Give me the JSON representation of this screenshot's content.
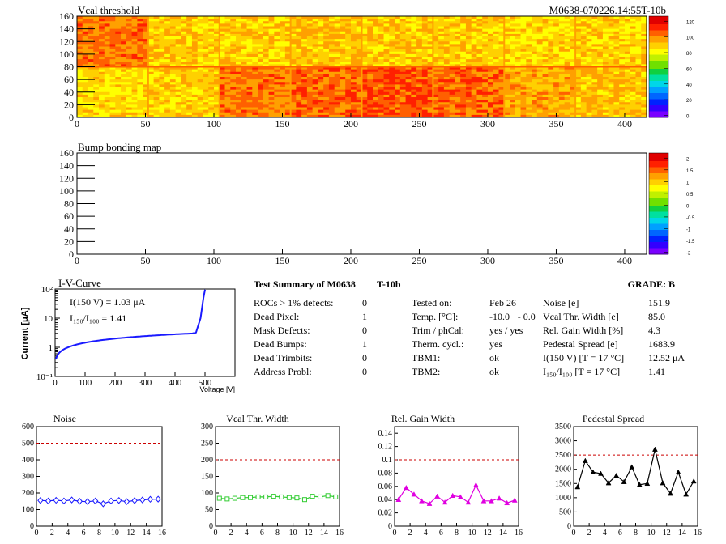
{
  "vcal_map": {
    "title": "Vcal threshold",
    "module_label": "M0638-070226.14:55T-10b",
    "x_ticks": [
      0,
      50,
      100,
      150,
      200,
      250,
      300,
      350,
      400
    ],
    "y_ticks": [
      0,
      20,
      40,
      60,
      80,
      100,
      120,
      140,
      160
    ],
    "scale_ticks": [
      "0",
      "20",
      "40",
      "60",
      "80",
      "100",
      "120"
    ]
  },
  "bump_map": {
    "title": "Bump bonding map",
    "x_ticks": [
      0,
      50,
      100,
      150,
      200,
      250,
      300,
      350,
      400
    ],
    "y_ticks": [
      0,
      20,
      40,
      60,
      80,
      100,
      120,
      140,
      160
    ],
    "scale_ticks": [
      "-2",
      "-1.5",
      "-1",
      "-0.5",
      "0",
      "0.5",
      "1",
      "1.5",
      "2"
    ]
  },
  "iv_curve": {
    "title": "I-V-Curve",
    "ylabel": "Current [μA]",
    "xlabel": "Voltage [V]",
    "x_ticks": [
      0,
      100,
      200,
      300,
      400,
      500
    ],
    "y_labels": [
      "10⁻¹",
      "1",
      "10",
      "10²"
    ],
    "annotation_1": "I(150 V) = 1.03 μA",
    "annotation_2": "I₁₅₀/I₁₀₀ = 1.41"
  },
  "summary": {
    "title": "Test Summary of M0638",
    "subtitle": "T-10b",
    "grade": "GRADE:  B",
    "col1": [
      {
        "label": "ROCs > 1% defects:",
        "value": "0"
      },
      {
        "label": "Dead Pixel:",
        "value": "1"
      },
      {
        "label": "Mask Defects:",
        "value": "0"
      },
      {
        "label": "Dead Bumps:",
        "value": "1"
      },
      {
        "label": "Dead Trimbits:",
        "value": "0"
      },
      {
        "label": "Address Probl:",
        "value": "0"
      }
    ],
    "col2": [
      {
        "label": "Tested on:",
        "value": "Feb 26"
      },
      {
        "label": "Temp. [°C]:",
        "value": "-10.0 +- 0.0"
      },
      {
        "label": "Trim / phCal:",
        "value": "yes / yes"
      },
      {
        "label": "Therm. cycl.:",
        "value": "yes"
      },
      {
        "label": "TBM1:",
        "value": "ok"
      },
      {
        "label": "TBM2:",
        "value": "ok"
      }
    ],
    "col3": [
      {
        "label": "Noise [e]",
        "value": "151.9"
      },
      {
        "label": "Vcal Thr. Width [e]",
        "value": "85.0"
      },
      {
        "label": "Rel. Gain Width [%]",
        "value": "4.3"
      },
      {
        "label": "Pedestal Spread [e]",
        "value": "1683.9"
      },
      {
        "label": "I(150 V) [T = 17 °C]",
        "value": "12.52 μA"
      },
      {
        "label": "I₁₅₀/I₁₀₀  [T = 17 °C]",
        "value": "1.41"
      }
    ]
  },
  "chart_data": [
    {
      "type": "line",
      "title": "Noise",
      "x": [
        0,
        1,
        2,
        3,
        4,
        5,
        6,
        7,
        8,
        9,
        10,
        11,
        12,
        13,
        14,
        15
      ],
      "values": [
        155,
        152,
        156,
        152,
        158,
        150,
        148,
        152,
        135,
        152,
        155,
        148,
        154,
        158,
        162,
        163
      ],
      "threshold": 500,
      "ylim": [
        0,
        600
      ],
      "xlim": [
        0,
        16
      ],
      "y_ticks": [
        0,
        100,
        200,
        300,
        400,
        500,
        600
      ],
      "x_ticks": [
        0,
        2,
        4,
        6,
        8,
        10,
        12,
        14,
        16
      ],
      "color": "#1a1aff",
      "marker": "diamond"
    },
    {
      "type": "line",
      "title": "Vcal Thr. Width",
      "x": [
        0,
        1,
        2,
        3,
        4,
        5,
        6,
        7,
        8,
        9,
        10,
        11,
        12,
        13,
        14,
        15
      ],
      "values": [
        84,
        82,
        84,
        86,
        86,
        88,
        88,
        90,
        88,
        86,
        85,
        80,
        90,
        88,
        92,
        88
      ],
      "threshold": 200,
      "ylim": [
        0,
        300
      ],
      "xlim": [
        0,
        16
      ],
      "y_ticks": [
        0,
        50,
        100,
        150,
        200,
        250,
        300
      ],
      "x_ticks": [
        0,
        2,
        4,
        6,
        8,
        10,
        12,
        14,
        16
      ],
      "color": "#33cc33",
      "marker": "square"
    },
    {
      "type": "line",
      "title": "Rel. Gain Width",
      "x": [
        0,
        1,
        2,
        3,
        4,
        5,
        6,
        7,
        8,
        9,
        10,
        11,
        12,
        13,
        14,
        15
      ],
      "values": [
        0.04,
        0.058,
        0.048,
        0.038,
        0.034,
        0.045,
        0.036,
        0.046,
        0.044,
        0.036,
        0.062,
        0.038,
        0.038,
        0.042,
        0.035,
        0.039
      ],
      "threshold": 0.1,
      "ylim": [
        0,
        0.15
      ],
      "xlim": [
        0,
        16
      ],
      "y_ticks": [
        0,
        0.02,
        0.04,
        0.06,
        0.08,
        0.1,
        0.12,
        0.14
      ],
      "x_ticks": [
        0,
        2,
        4,
        6,
        8,
        10,
        12,
        14,
        16
      ],
      "color": "#e000e0",
      "marker": "triangle"
    },
    {
      "type": "line",
      "title": "Pedestal Spread",
      "x": [
        0,
        1,
        2,
        3,
        4,
        5,
        6,
        7,
        8,
        9,
        10,
        11,
        12,
        13,
        14,
        15
      ],
      "values": [
        1380,
        2300,
        1900,
        1850,
        1520,
        1780,
        1560,
        2080,
        1460,
        1500,
        2700,
        1520,
        1150,
        1900,
        1120,
        1580
      ],
      "threshold": 2500,
      "ylim": [
        0,
        3500
      ],
      "xlim": [
        0,
        16
      ],
      "y_ticks": [
        0,
        500,
        1000,
        1500,
        2000,
        2500,
        3000,
        3500
      ],
      "x_ticks": [
        0,
        2,
        4,
        6,
        8,
        10,
        12,
        14,
        16
      ],
      "color": "#000000",
      "marker": "triangle"
    }
  ]
}
